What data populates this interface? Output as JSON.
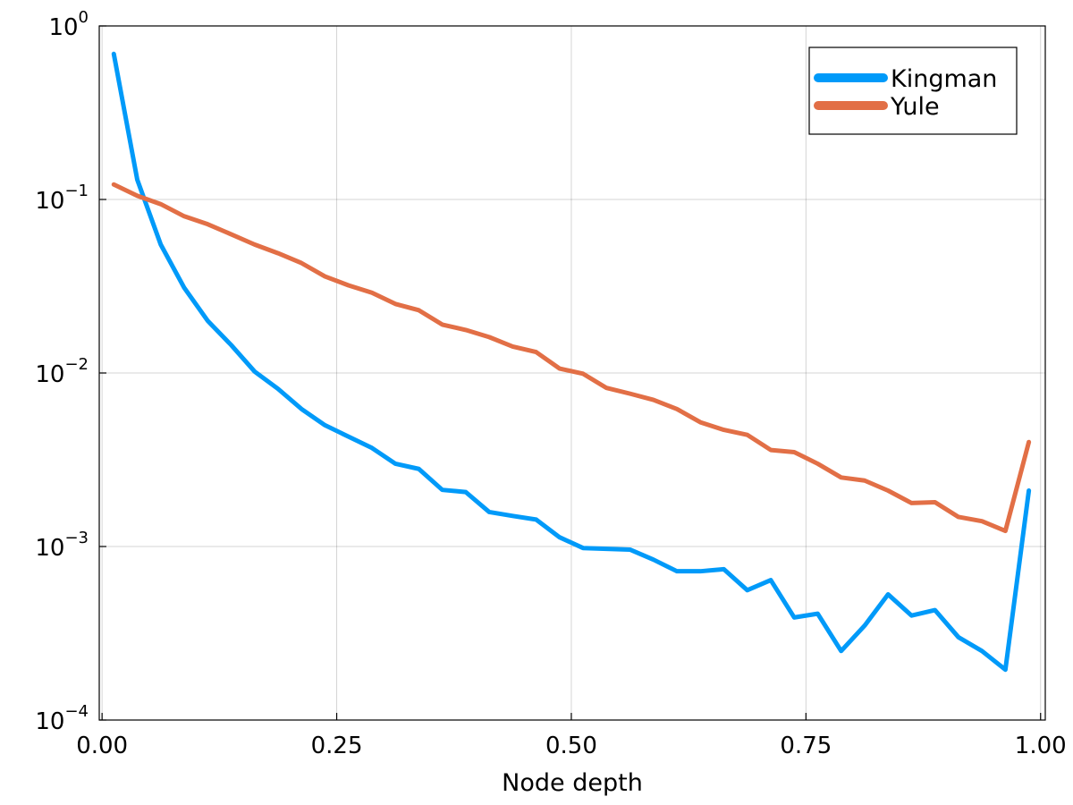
{
  "chart_data": {
    "type": "line",
    "title": "",
    "xlabel": "Node depth",
    "ylabel": "",
    "xlim": [
      -0.003,
      1.005
    ],
    "ylim": [
      0.0001,
      1
    ],
    "yscale": "log",
    "grid": true,
    "legend": {
      "position": "top-right"
    },
    "x_ticks": [
      {
        "value": 0.0,
        "label": "0.00"
      },
      {
        "value": 0.25,
        "label": "0.25"
      },
      {
        "value": 0.5,
        "label": "0.50"
      },
      {
        "value": 0.75,
        "label": "0.75"
      },
      {
        "value": 1.0,
        "label": "1.00"
      }
    ],
    "y_ticks": [
      {
        "value": 1,
        "base": "10",
        "exp": "0"
      },
      {
        "value": 0.1,
        "base": "10",
        "exp": "−1"
      },
      {
        "value": 0.01,
        "base": "10",
        "exp": "−2"
      },
      {
        "value": 0.001,
        "base": "10",
        "exp": "−3"
      },
      {
        "value": 0.0001,
        "base": "10",
        "exp": "−4"
      }
    ],
    "x": [
      0.0125,
      0.0375,
      0.0625,
      0.0875,
      0.1125,
      0.1375,
      0.1625,
      0.1875,
      0.2125,
      0.2375,
      0.2625,
      0.2875,
      0.3125,
      0.3375,
      0.3625,
      0.3875,
      0.4125,
      0.4375,
      0.4625,
      0.4875,
      0.5125,
      0.5375,
      0.5625,
      0.5875,
      0.6125,
      0.6375,
      0.6625,
      0.6875,
      0.7125,
      0.7375,
      0.7625,
      0.7875,
      0.8125,
      0.8375,
      0.8625,
      0.8875,
      0.9125,
      0.9375,
      0.9625,
      0.9875
    ],
    "series": [
      {
        "name": "Kingman",
        "color": "#009af9",
        "values": [
          0.69,
          0.13,
          0.055,
          0.031,
          0.02,
          0.0145,
          0.0102,
          0.0081,
          0.0062,
          0.005,
          0.0043,
          0.0037,
          0.003,
          0.0028,
          0.00212,
          0.00206,
          0.00158,
          0.0015,
          0.00143,
          0.00113,
          0.00098,
          0.00097,
          0.00096,
          0.00084,
          0.00072,
          0.00072,
          0.00074,
          0.00056,
          0.00064,
          0.00039,
          0.00041,
          0.00025,
          0.00035,
          0.00053,
          0.0004,
          0.00043,
          0.0003,
          0.00025,
          0.000195,
          0.0021
        ]
      },
      {
        "name": "Yule",
        "color": "#e26f46",
        "values": [
          0.122,
          0.105,
          0.094,
          0.08,
          0.072,
          0.063,
          0.055,
          0.049,
          0.043,
          0.036,
          0.032,
          0.029,
          0.025,
          0.023,
          0.019,
          0.0177,
          0.0161,
          0.0142,
          0.0132,
          0.0106,
          0.0099,
          0.0082,
          0.0076,
          0.007,
          0.0062,
          0.0052,
          0.0047,
          0.0044,
          0.0036,
          0.0035,
          0.003,
          0.0025,
          0.0024,
          0.0021,
          0.00178,
          0.0018,
          0.00148,
          0.0014,
          0.00123,
          0.004
        ]
      }
    ]
  }
}
